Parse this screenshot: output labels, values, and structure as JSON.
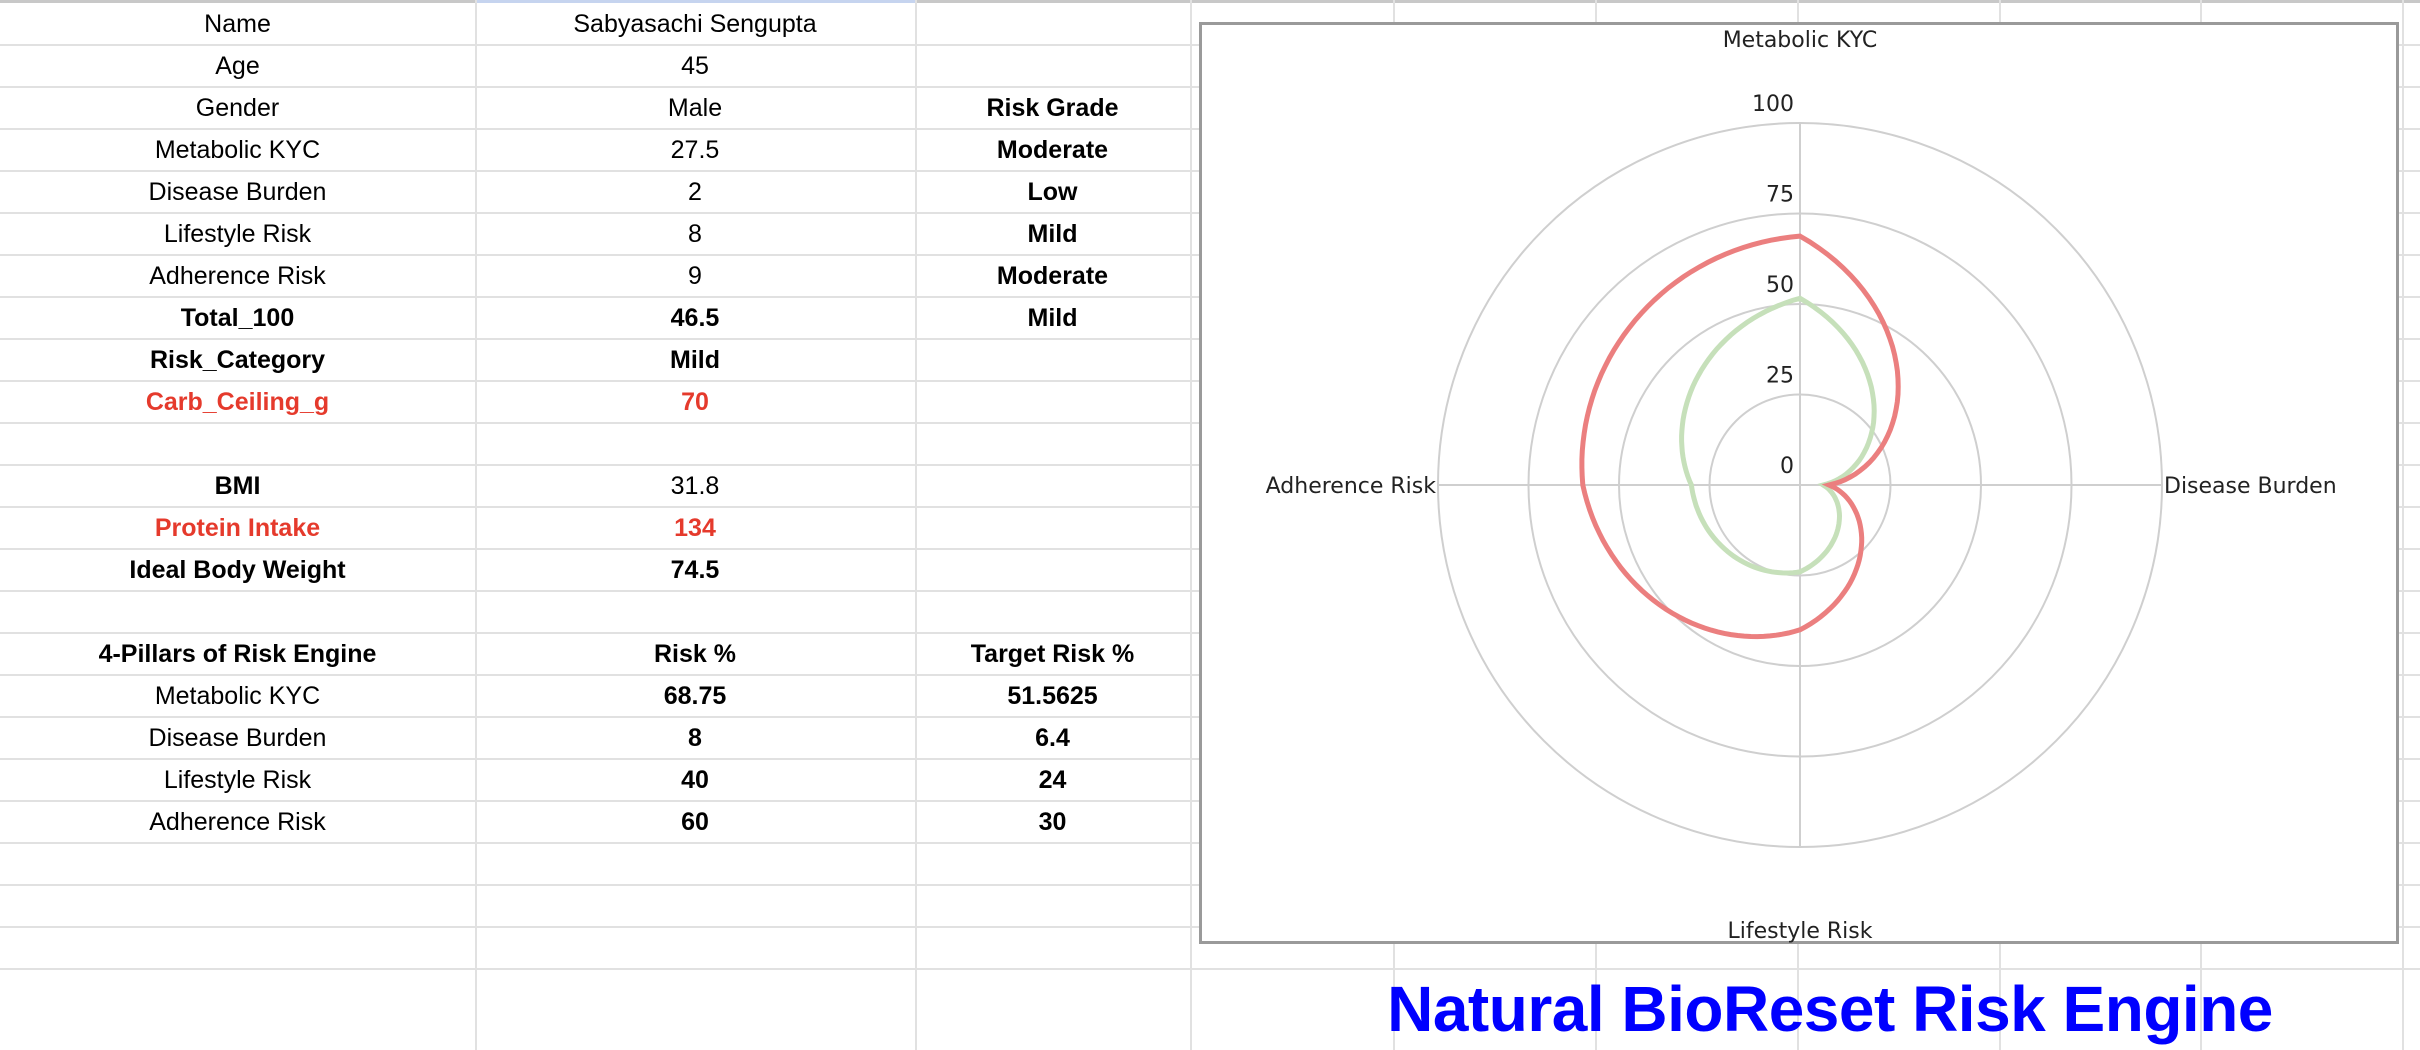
{
  "sheet": {
    "rows": [
      {
        "label": "Name",
        "value": "Sabyasachi Sengupta",
        "grade": "",
        "label_bold": false,
        "value_bold": false,
        "red": false
      },
      {
        "label": "Age",
        "value": "45",
        "grade": "",
        "label_bold": false,
        "value_bold": false,
        "red": false
      },
      {
        "label": "Gender",
        "value": "Male",
        "grade": "Risk Grade",
        "label_bold": false,
        "value_bold": false,
        "red": false
      },
      {
        "label": "Metabolic KYC",
        "value": "27.5",
        "grade": "Moderate",
        "label_bold": false,
        "value_bold": false,
        "red": false
      },
      {
        "label": "Disease Burden",
        "value": "2",
        "grade": "Low",
        "label_bold": false,
        "value_bold": false,
        "red": false
      },
      {
        "label": "Lifestyle Risk",
        "value": "8",
        "grade": "Mild",
        "label_bold": false,
        "value_bold": false,
        "red": false
      },
      {
        "label": "Adherence Risk",
        "value": "9",
        "grade": "Moderate",
        "label_bold": false,
        "value_bold": false,
        "red": false
      },
      {
        "label": "Total_100",
        "value": "46.5",
        "grade": "Mild",
        "label_bold": true,
        "value_bold": true,
        "red": false
      },
      {
        "label": "Risk_Category",
        "value": "Mild",
        "grade": "",
        "label_bold": true,
        "value_bold": true,
        "red": false
      },
      {
        "label": "Carb_Ceiling_g",
        "value": "70",
        "grade": "",
        "label_bold": true,
        "value_bold": true,
        "red": true
      },
      {
        "label": "",
        "value": "",
        "grade": "",
        "label_bold": false,
        "value_bold": false,
        "red": false
      },
      {
        "label": "BMI",
        "value": "31.8",
        "grade": "",
        "label_bold": true,
        "value_bold": false,
        "red": false
      },
      {
        "label": "Protein Intake",
        "value": "134",
        "grade": "",
        "label_bold": true,
        "value_bold": true,
        "red": true
      },
      {
        "label": "Ideal Body Weight",
        "value": "74.5",
        "grade": "",
        "label_bold": true,
        "value_bold": true,
        "red": false
      },
      {
        "label": "",
        "value": "",
        "grade": "",
        "label_bold": false,
        "value_bold": false,
        "red": false
      },
      {
        "label": "4-Pillars of Risk Engine",
        "value": "Risk %",
        "grade": "Target Risk %",
        "label_bold": true,
        "value_bold": true,
        "red": false
      },
      {
        "label": "Metabolic KYC",
        "value": "68.75",
        "grade": "51.5625",
        "label_bold": false,
        "value_bold": true,
        "red": false
      },
      {
        "label": "Disease Burden",
        "value": "8",
        "grade": "6.4",
        "label_bold": false,
        "value_bold": true,
        "red": false
      },
      {
        "label": "Lifestyle Risk",
        "value": "40",
        "grade": "24",
        "label_bold": false,
        "value_bold": true,
        "red": false
      },
      {
        "label": "Adherence Risk",
        "value": "60",
        "grade": "30",
        "label_bold": false,
        "value_bold": true,
        "red": false
      }
    ]
  },
  "colors": {
    "risk_line": "#eb7f7f",
    "target_line": "#c6e0ba",
    "title_blue": "#0000ff",
    "red_text": "#e53a2c",
    "grid": "#cfcfcf"
  },
  "page_title": "Natural BioReset Risk Engine",
  "chart_data": {
    "type": "radar",
    "title": "",
    "categories": [
      "Metabolic KYC",
      "Disease Burden",
      "Lifestyle Risk",
      "Adherence Risk"
    ],
    "series": [
      {
        "name": "Risk %",
        "values": [
          68.75,
          8,
          40,
          60
        ],
        "color": "#eb7f7f"
      },
      {
        "name": "Target Risk %",
        "values": [
          51.5625,
          6.4,
          24,
          30
        ],
        "color": "#c6e0ba"
      }
    ],
    "radial_ticks": [
      "0",
      "25",
      "50",
      "75",
      "100"
    ],
    "rlim": [
      0,
      100
    ],
    "grid": true,
    "legend": "none"
  }
}
